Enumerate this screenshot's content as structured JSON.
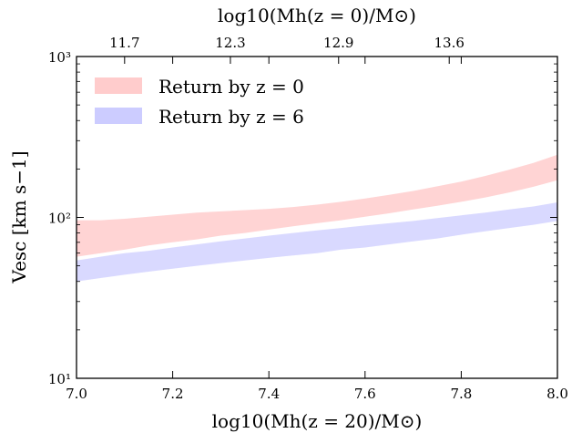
{
  "chart_data": {
    "type": "area",
    "xlabel": "log10(Mh(z = 20)/M⊙)",
    "x2label": "log10(Mh(z = 0)/M⊙)",
    "ylabel": "Vesc [km s−1]",
    "xlim": [
      7.0,
      8.0
    ],
    "ylim": [
      10,
      1000
    ],
    "yscale": "log",
    "x_ticks": [
      "7.0",
      "7.2",
      "7.4",
      "7.6",
      "7.8",
      "8.0"
    ],
    "y_ticks": [
      "10¹",
      "10²",
      "10³"
    ],
    "top_ticks": [
      {
        "x": 7.1,
        "label": "11.7"
      },
      {
        "x": 7.32,
        "label": "12.3"
      },
      {
        "x": 7.545,
        "label": "12.9"
      },
      {
        "x": 7.775,
        "label": "13.6"
      }
    ],
    "legend_position": "top-left",
    "grid": false,
    "series": [
      {
        "name": "Return by z = 0",
        "color": "#ffcccc",
        "x": [
          7.0,
          7.05,
          7.1,
          7.15,
          7.2,
          7.25,
          7.3,
          7.35,
          7.4,
          7.45,
          7.5,
          7.55,
          7.6,
          7.65,
          7.7,
          7.75,
          7.8,
          7.85,
          7.9,
          7.95,
          8.0
        ],
        "lower": [
          57,
          60,
          63,
          67,
          70,
          73,
          77,
          80,
          84,
          88,
          92,
          96,
          101,
          106,
          112,
          118,
          125,
          133,
          143,
          155,
          170
        ],
        "upper": [
          96,
          96,
          98,
          101,
          104,
          107,
          109,
          111,
          113,
          116,
          120,
          125,
          131,
          138,
          146,
          156,
          167,
          181,
          198,
          218,
          245
        ]
      },
      {
        "name": "Return by z = 6",
        "color": "#ccccff",
        "x": [
          7.0,
          7.05,
          7.1,
          7.15,
          7.2,
          7.25,
          7.3,
          7.35,
          7.4,
          7.45,
          7.5,
          7.55,
          7.6,
          7.65,
          7.7,
          7.75,
          7.8,
          7.85,
          7.9,
          7.95,
          8.0
        ],
        "lower": [
          40,
          42,
          44,
          46,
          48,
          50,
          52,
          54,
          56,
          58,
          60,
          63,
          65,
          68,
          71,
          74,
          78,
          82,
          86,
          90,
          95
        ],
        "upper": [
          54,
          57,
          60,
          62,
          65,
          68,
          71,
          74,
          77,
          80,
          83,
          86,
          89,
          92,
          95,
          99,
          103,
          107,
          112,
          117,
          124
        ]
      }
    ]
  }
}
